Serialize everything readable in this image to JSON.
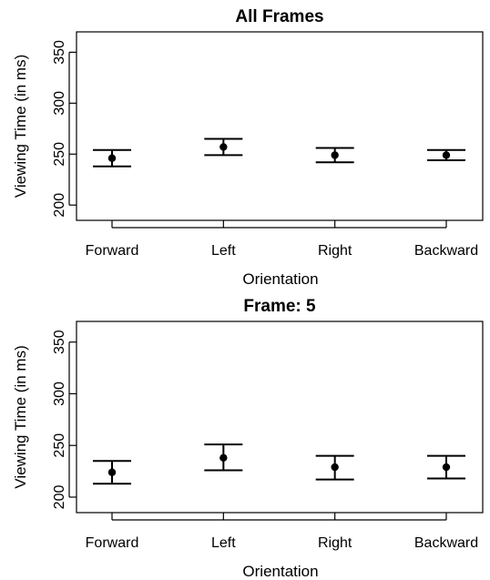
{
  "chart_data": [
    {
      "type": "scatter",
      "title": "All Frames",
      "xlabel": "Orientation",
      "ylabel": "Viewing Time (in ms)",
      "categories": [
        "Forward",
        "Left",
        "Right",
        "Backward"
      ],
      "yticks": [
        "200",
        "250",
        "300",
        "350"
      ],
      "ylim": [
        185,
        370
      ],
      "grid": false,
      "error_bars": true,
      "series": [
        {
          "points": [
            {
              "x": "Forward",
              "y": 246,
              "lower": 238,
              "upper": 254
            },
            {
              "x": "Left",
              "y": 257,
              "lower": 249,
              "upper": 265
            },
            {
              "x": "Right",
              "y": 249,
              "lower": 242,
              "upper": 256
            },
            {
              "x": "Backward",
              "y": 249,
              "lower": 244,
              "upper": 254
            }
          ]
        }
      ]
    },
    {
      "type": "scatter",
      "title": "Frame: 5",
      "xlabel": "Orientation",
      "ylabel": "Viewing Time (in ms)",
      "categories": [
        "Forward",
        "Left",
        "Right",
        "Backward"
      ],
      "yticks": [
        "200",
        "250",
        "300",
        "350"
      ],
      "ylim": [
        185,
        370
      ],
      "grid": false,
      "error_bars": true,
      "series": [
        {
          "points": [
            {
              "x": "Forward",
              "y": 224,
              "lower": 213,
              "upper": 235
            },
            {
              "x": "Left",
              "y": 238,
              "lower": 226,
              "upper": 251
            },
            {
              "x": "Right",
              "y": 229,
              "lower": 217,
              "upper": 240
            },
            {
              "x": "Backward",
              "y": 229,
              "lower": 218,
              "upper": 240
            }
          ]
        }
      ]
    }
  ]
}
